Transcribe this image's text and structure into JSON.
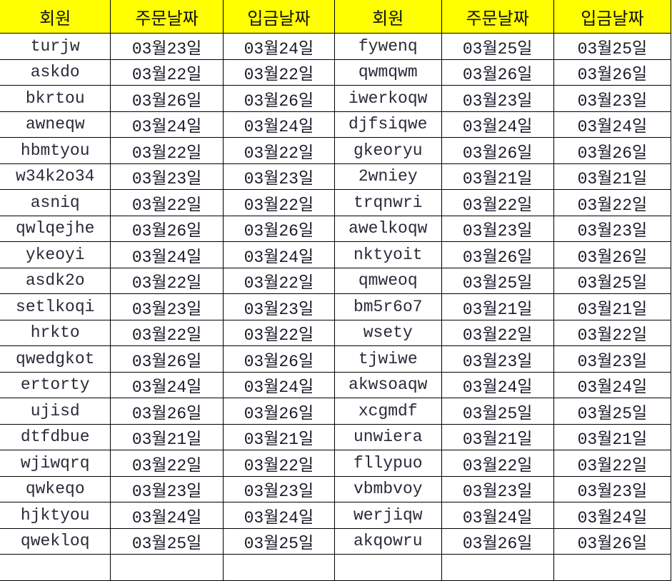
{
  "headers": [
    "회원",
    "주문날짜",
    "입금날짜",
    "회원",
    "주문날짜",
    "입금날짜"
  ],
  "header_color": "#ffff00",
  "rows": [
    [
      "turjw",
      "03월23일",
      "03월24일",
      "fywenq",
      "03월25일",
      "03월25일"
    ],
    [
      "askdo",
      "03월22일",
      "03월22일",
      "qwmqwm",
      "03월26일",
      "03월26일"
    ],
    [
      "bkrtou",
      "03월26일",
      "03월26일",
      "iwerkoqw",
      "03월23일",
      "03월23일"
    ],
    [
      "awneqw",
      "03월24일",
      "03월24일",
      "djfsiqwe",
      "03월24일",
      "03월24일"
    ],
    [
      "hbmtyou",
      "03월22일",
      "03월22일",
      "gkeoryu",
      "03월26일",
      "03월26일"
    ],
    [
      "w34k2o34",
      "03월23일",
      "03월23일",
      "2wniey",
      "03월21일",
      "03월21일"
    ],
    [
      "asniq",
      "03월22일",
      "03월22일",
      "trqnwri",
      "03월22일",
      "03월22일"
    ],
    [
      "qwlqejhe",
      "03월26일",
      "03월26일",
      "awelkoqw",
      "03월23일",
      "03월23일"
    ],
    [
      "ykeoyi",
      "03월24일",
      "03월24일",
      "nktyoit",
      "03월26일",
      "03월26일"
    ],
    [
      "asdk2o",
      "03월22일",
      "03월22일",
      "qmweoq",
      "03월25일",
      "03월25일"
    ],
    [
      "setlkoqi",
      "03월23일",
      "03월23일",
      "bm5r6o7",
      "03월21일",
      "03월21일"
    ],
    [
      "hrkto",
      "03월22일",
      "03월22일",
      "wsety",
      "03월22일",
      "03월22일"
    ],
    [
      "qwedgkot",
      "03월26일",
      "03월26일",
      "tjwiwe",
      "03월23일",
      "03월23일"
    ],
    [
      "ertorty",
      "03월24일",
      "03월24일",
      "akwsoaqw",
      "03월24일",
      "03월24일"
    ],
    [
      "ujisd",
      "03월26일",
      "03월26일",
      "xcgmdf",
      "03월25일",
      "03월25일"
    ],
    [
      "dtfdbue",
      "03월21일",
      "03월21일",
      "unwiera",
      "03월21일",
      "03월21일"
    ],
    [
      "wjiwqrq",
      "03월22일",
      "03월22일",
      "fllypuo",
      "03월22일",
      "03월22일"
    ],
    [
      "qwkeqo",
      "03월23일",
      "03월23일",
      "vbmbvoy",
      "03월23일",
      "03월23일"
    ],
    [
      "hjktyou",
      "03월24일",
      "03월24일",
      "werjiqw",
      "03월24일",
      "03월24일"
    ],
    [
      "qwekloq",
      "03월25일",
      "03월25일",
      "akqowru",
      "03월26일",
      "03월26일"
    ]
  ]
}
